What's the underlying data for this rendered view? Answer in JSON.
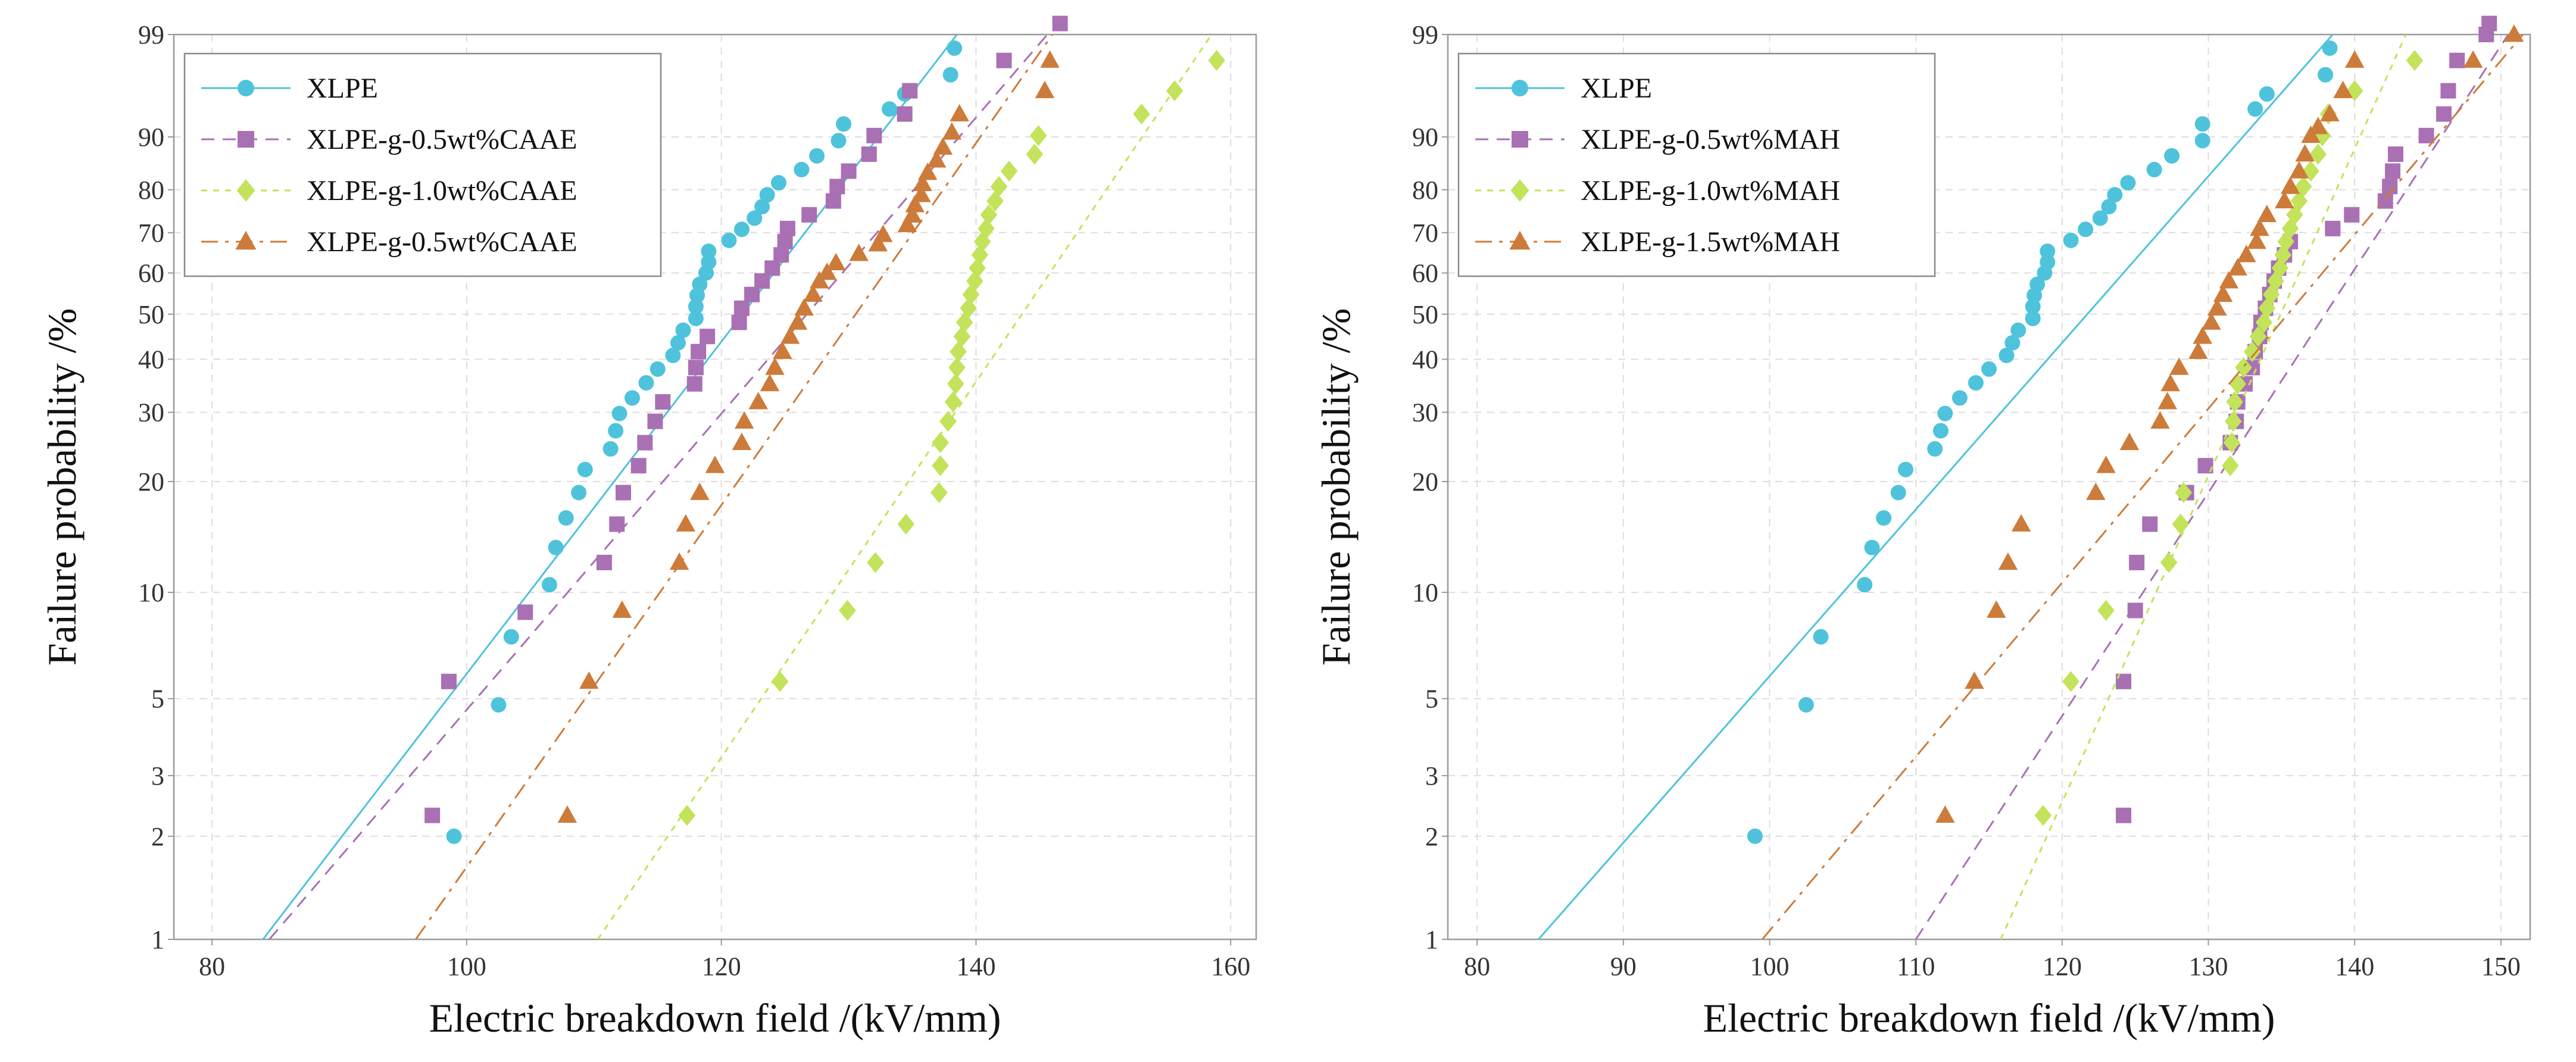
{
  "chart_data": [
    {
      "type": "scatter",
      "title": "",
      "xlabel": "Electric breakdown field /(kV/mm)",
      "ylabel": "Failure probability /%",
      "xlim": [
        77,
        162
      ],
      "ylim": [
        1,
        99
      ],
      "x_ticks": [
        "80",
        "100",
        "120",
        "140",
        "160"
      ],
      "y_ticks": [
        "1",
        "2",
        "3",
        "5",
        "10",
        "20",
        "30",
        "40",
        "50",
        "60",
        "70",
        "80",
        "90",
        "99"
      ],
      "grid": true,
      "legend_position": "top-left",
      "series": [
        {
          "name": "XLPE",
          "color": "#4FC3DB",
          "marker": "circle",
          "line_style": "solid",
          "fit_x": [
            84.0,
            138.5
          ],
          "fit_y": [
            1,
            99
          ],
          "x": [
            99.0,
            102.5,
            103.5,
            106.5,
            107.0,
            107.8,
            108.8,
            109.3,
            111.3,
            111.7,
            112.0,
            113.0,
            114.1,
            115.0,
            116.2,
            116.6,
            117.0,
            118.0,
            118.0,
            118.1,
            118.3,
            118.8,
            119.0,
            119.0,
            120.6,
            121.6,
            122.6,
            123.2,
            123.6,
            124.5,
            126.3,
            127.5,
            129.2,
            129.6,
            133.2,
            134.4,
            138.0,
            138.3
          ],
          "y": [
            2.0,
            4.8,
            7.5,
            10.5,
            13.3,
            16.0,
            18.7,
            21.5,
            24.3,
            27.0,
            29.8,
            32.5,
            35.3,
            38.0,
            40.8,
            43.5,
            46.3,
            49.0,
            51.8,
            54.5,
            57.2,
            60.0,
            62.7,
            65.4,
            68.1,
            70.8,
            73.5,
            76.2,
            78.9,
            81.5,
            84.2,
            86.8,
            89.4,
            91.9,
            93.8,
            95.4,
            97.0,
            98.5
          ]
        },
        {
          "name": "XLPE-g-0.5wt%CAAE",
          "color": "#A970B4",
          "marker": "square",
          "line_style": "dashed",
          "fit_x": [
            84.5,
            145.6
          ],
          "fit_y": [
            1,
            99
          ],
          "x": [
            97.3,
            98.6,
            104.6,
            110.8,
            111.8,
            112.3,
            113.5,
            114.0,
            114.8,
            115.4,
            117.9,
            118.0,
            118.2,
            118.9,
            121.4,
            121.6,
            122.4,
            123.2,
            124.0,
            124.7,
            125.0,
            125.2,
            126.9,
            128.8,
            129.1,
            130.0,
            131.6,
            132.0,
            134.4,
            134.8,
            142.2,
            146.6
          ],
          "y": [
            2.3,
            5.6,
            8.8,
            12.1,
            15.4,
            18.7,
            22.0,
            25.2,
            28.5,
            31.8,
            35.1,
            38.3,
            41.6,
            44.9,
            48.1,
            51.4,
            54.7,
            58.0,
            61.2,
            64.5,
            67.8,
            71.0,
            74.3,
            77.5,
            80.7,
            83.9,
            87.1,
            90.2,
            93.2,
            95.7,
            97.9,
            99.3
          ]
        },
        {
          "name": "XLPE-g-1.0wt%CAAE",
          "color": "#C2E35A",
          "marker": "diamond",
          "line_style": "dotted",
          "fit_x": [
            110.3,
            158.5
          ],
          "fit_y": [
            1,
            99
          ],
          "x": [
            117.3,
            124.6,
            129.9,
            132.1,
            134.5,
            137.1,
            137.2,
            137.2,
            137.8,
            138.2,
            138.4,
            138.5,
            138.6,
            138.9,
            139.1,
            139.4,
            139.6,
            139.9,
            140.1,
            140.3,
            140.5,
            140.8,
            141.0,
            141.5,
            141.8,
            142.6,
            144.6,
            144.9,
            153.0,
            155.6,
            158.9
          ],
          "y": [
            2.3,
            5.6,
            8.9,
            12.1,
            15.4,
            18.7,
            22.0,
            25.2,
            28.5,
            31.8,
            35.1,
            38.3,
            41.6,
            44.9,
            48.1,
            51.4,
            54.7,
            58.0,
            61.2,
            64.5,
            67.8,
            71.0,
            74.3,
            77.5,
            80.7,
            83.9,
            87.1,
            90.2,
            93.2,
            95.7,
            97.9
          ]
        },
        {
          "name": "XLPE-g-0.5wt%CAAE",
          "color": "#CD7B3A",
          "marker": "triangle",
          "line_style": "dashdot",
          "fit_x": [
            96.0,
            146.0
          ],
          "fit_y": [
            1,
            99
          ],
          "x": [
            107.9,
            109.6,
            112.2,
            116.7,
            117.2,
            118.3,
            119.5,
            121.6,
            121.8,
            122.9,
            123.8,
            124.2,
            124.8,
            125.4,
            126.0,
            126.5,
            127.2,
            127.7,
            128.3,
            129.0,
            130.8,
            132.3,
            132.7,
            134.6,
            135.0,
            135.2,
            135.7,
            135.8,
            136.2,
            136.9,
            137.4,
            138.1,
            138.7,
            145.4,
            145.8
          ],
          "y": [
            2.3,
            5.6,
            8.9,
            12.1,
            15.4,
            18.7,
            22.0,
            25.2,
            28.5,
            31.8,
            35.1,
            38.3,
            41.6,
            44.9,
            48.1,
            51.4,
            54.7,
            58.0,
            60.1,
            62.5,
            64.8,
            67.2,
            69.5,
            71.9,
            74.2,
            76.6,
            78.9,
            81.3,
            83.6,
            86.0,
            88.3,
            90.7,
            93.2,
            95.7,
            97.9
          ]
        }
      ]
    },
    {
      "type": "scatter",
      "title": "",
      "xlabel": "Electric breakdown field /(kV/mm)",
      "ylabel": "Failure probability /%",
      "xlim": [
        78,
        152
      ],
      "ylim": [
        1,
        99
      ],
      "x_ticks": [
        "80",
        "90",
        "100",
        "110",
        "120",
        "130",
        "140",
        "150"
      ],
      "y_ticks": [
        "1",
        "2",
        "3",
        "5",
        "10",
        "20",
        "30",
        "40",
        "50",
        "60",
        "70",
        "80",
        "90",
        "99"
      ],
      "grid": true,
      "legend_position": "top-left",
      "series": [
        {
          "name": "XLPE",
          "color": "#4FC3DB",
          "marker": "circle",
          "line_style": "solid",
          "fit_x": [
            84.2,
            138.5
          ],
          "fit_y": [
            1,
            99
          ],
          "x": [
            99.0,
            102.5,
            103.5,
            106.5,
            107.0,
            107.8,
            108.8,
            109.3,
            111.3,
            111.7,
            112.0,
            113.0,
            114.1,
            115.0,
            116.2,
            116.6,
            117.0,
            118.0,
            118.0,
            118.1,
            118.3,
            118.8,
            119.0,
            119.0,
            120.6,
            121.6,
            122.6,
            123.2,
            123.6,
            124.5,
            126.3,
            127.5,
            129.6,
            129.6,
            133.2,
            134.0,
            138.0,
            138.3
          ],
          "y": [
            2.0,
            4.8,
            7.5,
            10.5,
            13.3,
            16.0,
            18.7,
            21.5,
            24.3,
            27.0,
            29.8,
            32.5,
            35.3,
            38.0,
            40.8,
            43.5,
            46.3,
            49.0,
            51.8,
            54.5,
            57.2,
            60.0,
            62.7,
            65.4,
            68.1,
            70.8,
            73.5,
            76.2,
            78.9,
            81.5,
            84.2,
            86.8,
            89.4,
            91.9,
            93.8,
            95.4,
            97.0,
            98.5
          ]
        },
        {
          "name": "XLPE-g-0.5wt%MAH",
          "color": "#A970B4",
          "marker": "square",
          "line_style": "dashed",
          "fit_x": [
            110.0,
            150.5
          ],
          "fit_y": [
            1,
            99
          ],
          "x": [
            124.2,
            124.2,
            125.0,
            125.1,
            126.0,
            128.5,
            129.8,
            131.5,
            131.9,
            132.0,
            132.5,
            133.0,
            133.2,
            133.5,
            133.6,
            133.9,
            134.2,
            134.5,
            134.8,
            135.2,
            135.6,
            138.5,
            139.8,
            142.1,
            142.4,
            142.6,
            142.8,
            144.9,
            146.1,
            146.4,
            147.0,
            149.0,
            149.2
          ],
          "y": [
            2.3,
            5.6,
            8.9,
            12.1,
            15.4,
            18.7,
            22.0,
            25.2,
            28.5,
            31.8,
            35.1,
            38.3,
            41.6,
            44.9,
            48.1,
            51.4,
            54.7,
            58.0,
            61.2,
            64.5,
            67.8,
            71.0,
            74.3,
            77.5,
            80.7,
            83.9,
            87.1,
            90.2,
            93.2,
            95.7,
            97.9,
            99.0,
            99.3
          ]
        },
        {
          "name": "XLPE-g-1.0wt%MAH",
          "color": "#C2E35A",
          "marker": "diamond",
          "line_style": "dotted",
          "fit_x": [
            115.8,
            143.5
          ],
          "fit_y": [
            1,
            99
          ],
          "x": [
            118.7,
            120.6,
            123.0,
            127.3,
            128.1,
            128.3,
            131.5,
            131.6,
            131.7,
            131.8,
            132.0,
            132.4,
            133.0,
            133.4,
            133.8,
            134.0,
            134.3,
            134.6,
            134.9,
            135.1,
            135.3,
            135.6,
            135.9,
            136.2,
            136.5,
            137.0,
            137.5,
            137.8,
            138.2,
            140.0,
            144.1
          ],
          "y": [
            2.3,
            5.6,
            8.9,
            12.1,
            15.4,
            18.7,
            22.0,
            25.2,
            28.5,
            31.8,
            35.1,
            38.3,
            41.6,
            44.9,
            48.1,
            51.4,
            54.7,
            58.0,
            61.2,
            64.5,
            67.8,
            71.0,
            74.3,
            77.5,
            80.7,
            83.9,
            87.1,
            90.2,
            93.2,
            95.7,
            97.9
          ]
        },
        {
          "name": "XLPE-g-1.5wt%MAH",
          "color": "#CD7B3A",
          "marker": "triangle",
          "line_style": "dashdot",
          "fit_x": [
            99.5,
            151.5
          ],
          "fit_y": [
            1,
            99
          ],
          "x": [
            112.0,
            114.0,
            115.5,
            116.3,
            117.2,
            122.3,
            123.0,
            124.6,
            126.7,
            127.2,
            127.4,
            128.0,
            129.3,
            129.6,
            130.2,
            130.6,
            131.0,
            131.4,
            132.0,
            132.6,
            133.3,
            133.5,
            134.0,
            135.2,
            135.6,
            136.2,
            136.6,
            137.0,
            137.5,
            138.3,
            139.2,
            140.0,
            148.1,
            150.9
          ],
          "y": [
            2.3,
            5.6,
            8.9,
            12.1,
            15.4,
            18.7,
            22.0,
            25.2,
            28.5,
            31.8,
            35.1,
            38.3,
            41.6,
            44.9,
            48.1,
            51.4,
            54.7,
            58.0,
            61.2,
            64.5,
            67.8,
            71.0,
            74.3,
            77.5,
            80.7,
            83.9,
            87.1,
            90.2,
            91.5,
            93.2,
            95.7,
            97.9,
            97.9,
            99.0
          ]
        }
      ]
    }
  ]
}
